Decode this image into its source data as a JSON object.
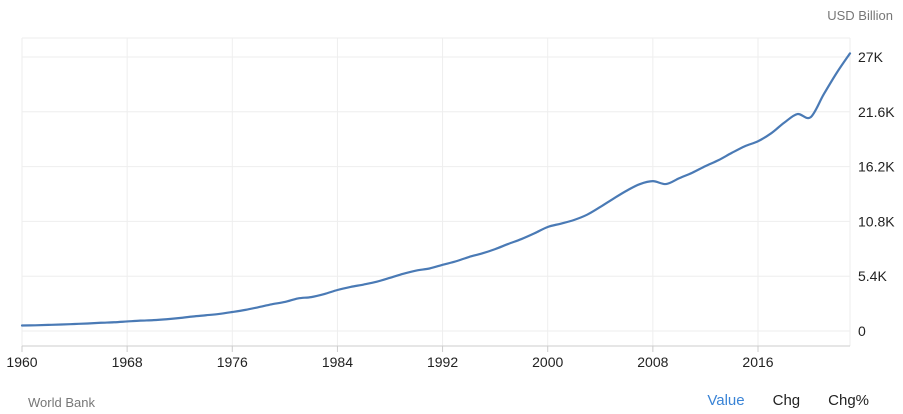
{
  "unit_label": "USD Billion",
  "source": "World Bank",
  "tabs": [
    {
      "label": "Value",
      "active": true
    },
    {
      "label": "Chg",
      "active": false
    },
    {
      "label": "Chg%",
      "active": false
    }
  ],
  "colors": {
    "line": "#4a7ab5",
    "grid": "#eeeeee",
    "active_tab": "#3a84d6"
  },
  "chart_data": {
    "type": "line",
    "title": "",
    "xlabel": "",
    "ylabel": "",
    "unit": "USD Billion",
    "xlim": [
      1960,
      2023
    ],
    "ylim": [
      0,
      27000
    ],
    "x_ticks": [
      1960,
      1968,
      1976,
      1984,
      1992,
      2000,
      2008,
      2016
    ],
    "x_tick_labels": [
      "1960",
      "1968",
      "1976",
      "1984",
      "1992",
      "2000",
      "2008",
      "2016"
    ],
    "y_ticks": [
      0,
      5400,
      10800,
      16200,
      21600,
      27000
    ],
    "y_tick_labels": [
      "0",
      "5.4K",
      "10.8K",
      "16.2K",
      "21.6K",
      "27K"
    ],
    "grid": true,
    "series": [
      {
        "x": [
          1960,
          1961,
          1962,
          1963,
          1964,
          1965,
          1966,
          1967,
          1968,
          1969,
          1970,
          1971,
          1972,
          1973,
          1974,
          1975,
          1976,
          1977,
          1978,
          1979,
          1980,
          1981,
          1982,
          1983,
          1984,
          1985,
          1986,
          1987,
          1988,
          1989,
          1990,
          1991,
          1992,
          1993,
          1994,
          1995,
          1996,
          1997,
          1998,
          1999,
          2000,
          2001,
          2002,
          2003,
          2004,
          2005,
          2006,
          2007,
          2008,
          2009,
          2010,
          2011,
          2012,
          2013,
          2014,
          2015,
          2016,
          2017,
          2018,
          2019,
          2020,
          2021,
          2022,
          2023
        ],
        "values": [
          540,
          560,
          600,
          640,
          690,
          740,
          810,
          860,
          940,
          1020,
          1070,
          1160,
          1280,
          1430,
          1550,
          1680,
          1870,
          2080,
          2350,
          2630,
          2860,
          3210,
          3340,
          3640,
          4040,
          4340,
          4580,
          4860,
          5240,
          5640,
          5960,
          6160,
          6520,
          6860,
          7290,
          7640,
          8070,
          8580,
          9060,
          9630,
          10250,
          10580,
          10940,
          11460,
          12220,
          13040,
          13820,
          14470,
          14770,
          14480,
          15050,
          15600,
          16250,
          16840,
          17550,
          18210,
          18700,
          19480,
          20530,
          21380,
          21060,
          23320,
          25460,
          27360
        ]
      }
    ]
  }
}
